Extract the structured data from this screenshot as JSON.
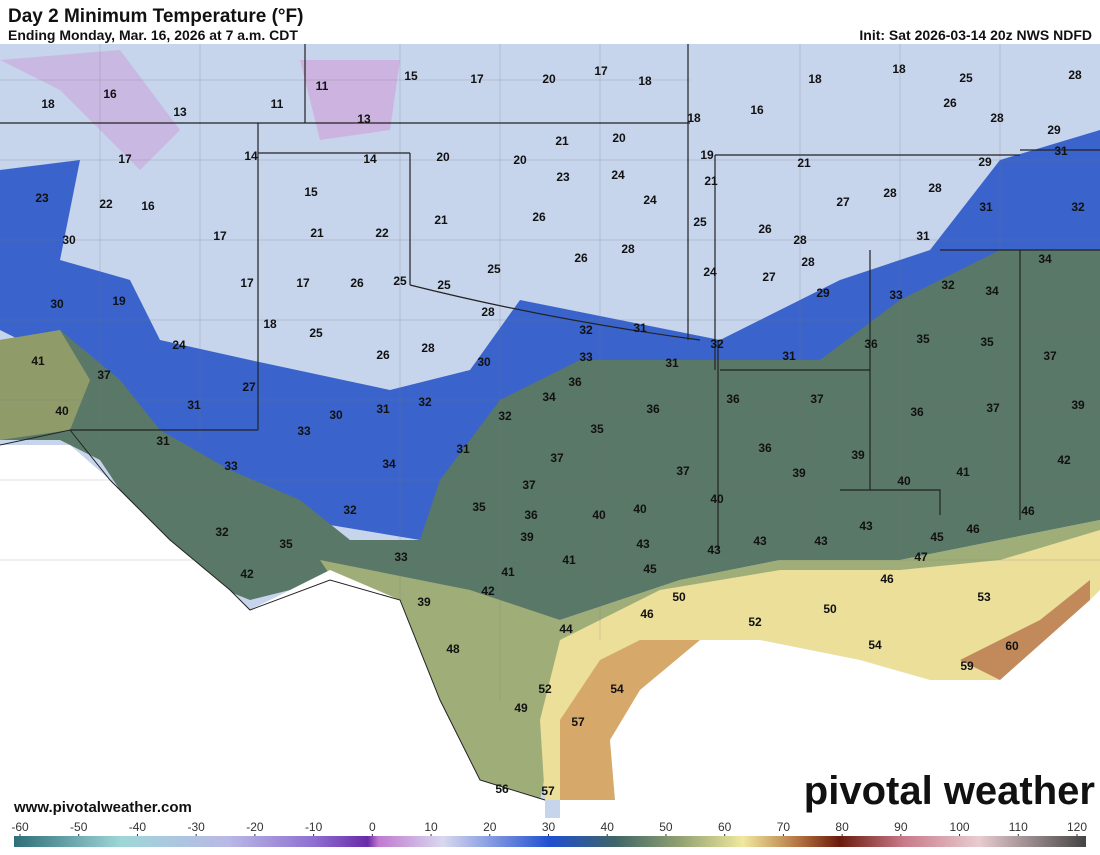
{
  "header": {
    "title": "Day 2 Minimum Temperature (°F)",
    "subtitle": "Ending Monday, Mar. 16, 2026 at 7 a.m. CDT",
    "init": "Init: Sat 2026-03-14 20z NWS NDFD"
  },
  "map": {
    "labels": [
      18,
      16,
      13,
      11,
      11,
      13,
      15,
      17,
      20,
      17,
      18,
      18,
      18,
      25,
      28,
      16,
      26,
      28,
      29,
      31,
      18,
      17,
      14,
      14,
      20,
      21,
      20,
      20,
      19,
      21,
      29,
      23,
      22,
      16,
      15,
      23,
      24,
      21,
      28,
      27,
      28,
      31,
      32,
      30,
      17,
      21,
      22,
      21,
      26,
      24,
      25,
      26,
      28,
      31,
      34,
      30,
      19,
      17,
      17,
      26,
      25,
      25,
      25,
      26,
      28,
      24,
      27,
      28,
      29,
      32,
      33,
      34,
      18,
      25,
      28,
      32,
      31,
      32,
      31,
      36,
      35,
      35,
      37,
      41,
      24,
      26,
      28,
      30,
      33,
      31,
      37,
      40,
      27,
      31,
      31,
      32,
      30,
      36,
      34,
      36,
      36,
      37,
      36,
      37,
      39,
      31,
      33,
      32,
      35,
      36,
      39,
      42,
      33,
      34,
      31,
      37,
      37,
      39,
      41,
      40,
      37,
      40,
      35,
      36,
      40,
      40,
      43,
      46,
      45,
      46,
      32,
      32,
      35,
      39,
      43,
      43,
      43,
      43,
      47,
      42,
      33,
      41,
      45,
      41,
      42,
      46,
      50,
      50,
      53,
      39,
      46,
      52,
      44,
      54,
      60,
      59,
      48,
      54,
      52,
      49,
      57,
      56,
      57
    ]
  },
  "footer": {
    "website": "www.pivotalweather.com",
    "logo": "pivotal weather"
  },
  "colorbar": {
    "range": [
      -60,
      120
    ],
    "ticks": [
      -60,
      -50,
      -40,
      -30,
      -20,
      -10,
      0,
      10,
      20,
      30,
      40,
      50,
      60,
      70,
      80,
      90,
      100,
      110,
      120
    ]
  }
}
